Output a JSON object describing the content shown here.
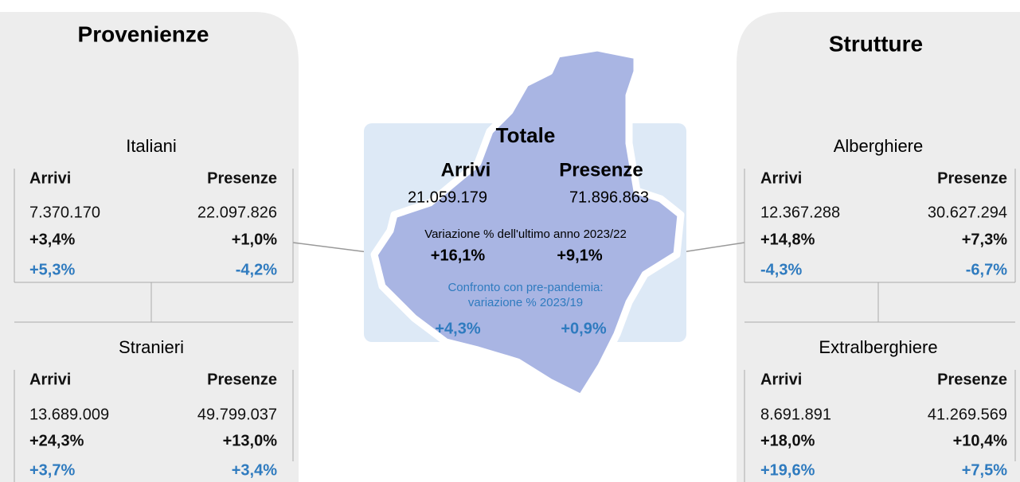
{
  "left": {
    "title": "Provenienze",
    "groups": [
      {
        "name": "Italiani",
        "headers": [
          "Arrivi",
          "Presenze"
        ],
        "values": [
          "7.370.170",
          "22.097.826"
        ],
        "change": [
          "+3,4%",
          "+1,0%"
        ],
        "prepandemic": [
          "+5,3%",
          "-4,2%"
        ]
      },
      {
        "name": "Stranieri",
        "headers": [
          "Arrivi",
          "Presenze"
        ],
        "values": [
          "13.689.009",
          "49.799.037"
        ],
        "change": [
          "+24,3%",
          "+13,0%"
        ],
        "prepandemic": [
          "+3,7%",
          "+3,4%"
        ]
      }
    ]
  },
  "center": {
    "title": "Totale",
    "headers": [
      "Arrivi",
      "Presenze"
    ],
    "values": [
      "21.059.179",
      "71.896.863"
    ],
    "change_label": "Variazione % dell'ultimo anno 2023/22",
    "change": [
      "+16,1%",
      "+9,1%"
    ],
    "prepandemic_label": [
      "Confronto con pre-pandemia:",
      "variazione % 2023/19"
    ],
    "prepandemic": [
      "+4,3%",
      "+0,9%"
    ]
  },
  "right": {
    "title": "Strutture",
    "groups": [
      {
        "name": "Alberghiere",
        "headers": [
          "Arrivi",
          "Presenze"
        ],
        "values": [
          "12.367.288",
          "30.627.294"
        ],
        "change": [
          "+14,8%",
          "+7,3%"
        ],
        "prepandemic": [
          "-4,3%",
          "-6,7%"
        ]
      },
      {
        "name": "Extralberghiere",
        "headers": [
          "Arrivi",
          "Presenze"
        ],
        "values": [
          "8.691.891",
          "41.269.569"
        ],
        "change": [
          "+18,0%",
          "+10,4%"
        ],
        "prepandemic": [
          "+19,6%",
          "+7,5%"
        ]
      }
    ]
  }
}
